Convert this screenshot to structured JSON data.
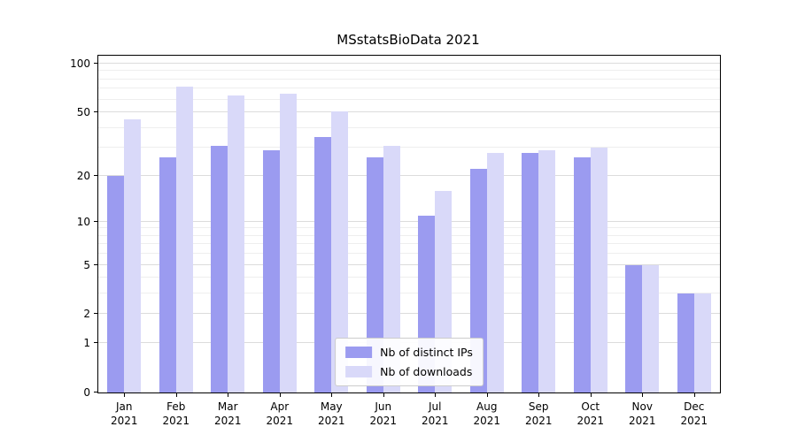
{
  "chart_data": {
    "type": "bar",
    "title": "MSstatsBioData 2021",
    "xlabel": "",
    "ylabel": "",
    "yscale": "log(1+x)",
    "ylim": [
      0,
      112
    ],
    "grid": true,
    "legend_position": "lower center",
    "categories": [
      "Jan",
      "Feb",
      "Mar",
      "Apr",
      "May",
      "Jun",
      "Jul",
      "Aug",
      "Sep",
      "Oct",
      "Nov",
      "Dec"
    ],
    "year_label": "2021",
    "series": [
      {
        "name": "Nb of distinct IPs",
        "color": "#9b9bf0",
        "values": [
          20,
          26,
          31,
          29,
          35,
          26,
          11,
          22,
          28,
          26,
          5,
          3
        ]
      },
      {
        "name": "Nb of downloads",
        "color": "#d9d9f9",
        "values": [
          45,
          72,
          64,
          65,
          51,
          31,
          16,
          28,
          29,
          30,
          5,
          3
        ]
      }
    ],
    "yticks": [
      {
        "value": 100,
        "label": "100"
      },
      {
        "value": 50,
        "label": "50"
      },
      {
        "value": 20,
        "label": "20"
      },
      {
        "value": 10,
        "label": "10"
      },
      {
        "value": 5,
        "label": "5"
      },
      {
        "value": 2,
        "label": "2"
      },
      {
        "value": 1,
        "label": "1"
      },
      {
        "value": 0,
        "label": "0"
      }
    ],
    "minor_gridlines": [
      3,
      4,
      6,
      7,
      8,
      9,
      30,
      40,
      60,
      70,
      80,
      90
    ]
  },
  "colors": {
    "background": "#ffffff",
    "spine": "#000000",
    "grid_major": "#dcdcdc",
    "grid_minor": "#eeeeee",
    "legend_border": "#cccccc",
    "series_ips": "#9b9bf0",
    "series_downloads": "#d9d9f9"
  }
}
